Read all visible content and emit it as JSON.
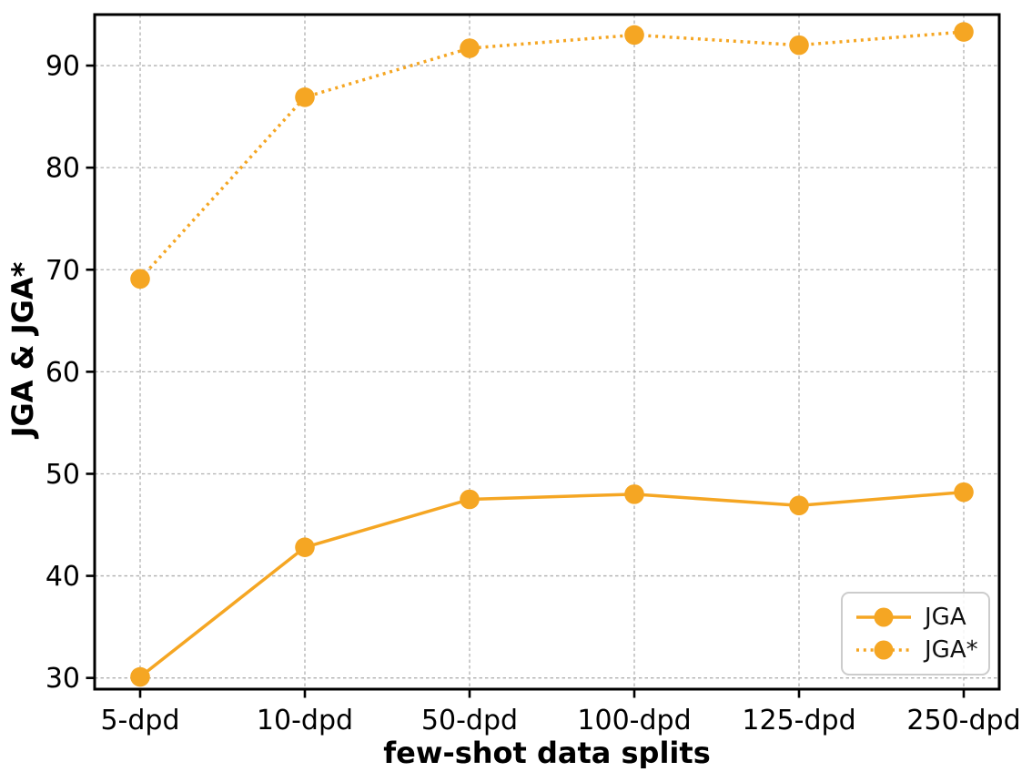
{
  "chart_data": {
    "type": "line",
    "title": "",
    "xlabel": "few-shot data splits",
    "ylabel": "JGA & JGA*",
    "categories": [
      "5-dpd",
      "10-dpd",
      "50-dpd",
      "100-dpd",
      "125-dpd",
      "250-dpd"
    ],
    "series": [
      {
        "name": "JGA",
        "style": "solid",
        "values": [
          30.1,
          42.8,
          47.5,
          48.0,
          46.9,
          48.2
        ]
      },
      {
        "name": "JGA*",
        "style": "dotted",
        "values": [
          69.1,
          86.9,
          91.7,
          93.0,
          92.0,
          93.3
        ]
      }
    ],
    "yticks": [
      30,
      40,
      50,
      60,
      70,
      80,
      90
    ],
    "ylim": [
      28.9,
      95.0
    ],
    "grid": true,
    "legend_position": "lower right",
    "color": "#F5A623",
    "grid_color": "#b0b0b0",
    "spine_color": "#000000"
  }
}
